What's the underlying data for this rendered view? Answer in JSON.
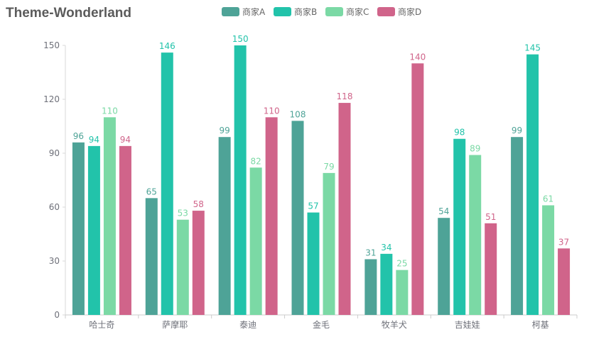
{
  "chart_data": {
    "type": "bar",
    "title": "Theme-Wonderland",
    "xlabel": "",
    "ylabel": "",
    "categories": [
      "哈士奇",
      "萨摩耶",
      "泰迪",
      "金毛",
      "牧羊犬",
      "吉娃娃",
      "柯基"
    ],
    "series": [
      {
        "name": "商家A",
        "color": "#4ea397",
        "values": [
          96,
          65,
          99,
          108,
          31,
          54,
          99
        ]
      },
      {
        "name": "商家B",
        "color": "#22c3aa",
        "values": [
          94,
          146,
          150,
          57,
          34,
          98,
          145
        ]
      },
      {
        "name": "商家C",
        "color": "#7bd9a5",
        "values": [
          110,
          53,
          82,
          79,
          25,
          89,
          61
        ]
      },
      {
        "name": "商家D",
        "color": "#d0648a",
        "values": [
          94,
          58,
          110,
          118,
          140,
          51,
          37
        ]
      }
    ],
    "ylim": [
      0,
      150
    ],
    "yticks": [
      0,
      30,
      60,
      90,
      120,
      150
    ],
    "grid": false,
    "legend_position": "top-center",
    "data_labels": true
  }
}
